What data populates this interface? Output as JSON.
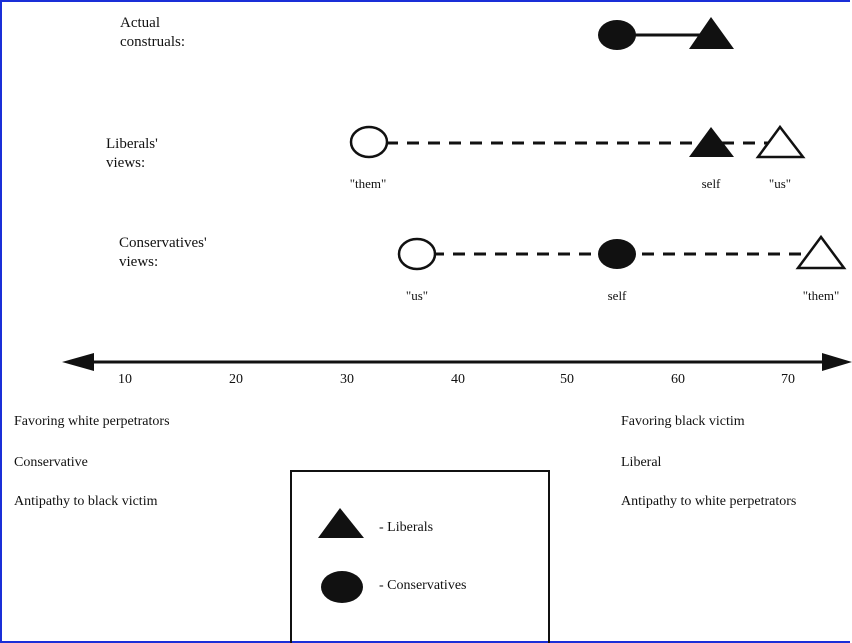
{
  "rows": [
    {
      "label": "Actual\nconstruals:"
    },
    {
      "label": "Liberals'\nviews:",
      "left_point": "\"them\"",
      "mid_point": "self",
      "right_point": "\"us\""
    },
    {
      "label": "Conservatives'\nviews:",
      "left_point": "\"us\"",
      "mid_point": "self",
      "right_point": "\"them\""
    }
  ],
  "axis": {
    "ticks": [
      "10",
      "20",
      "30",
      "40",
      "50",
      "60",
      "70"
    ]
  },
  "left_labels": [
    "Favoring white perpetrators",
    "Conservative",
    "Antipathy to black victim"
  ],
  "right_labels": [
    "Favoring black victim",
    "Liberal",
    "Antipathy to white perpetrators"
  ],
  "legend": {
    "liberals": "- Liberals",
    "conservatives": "- Conservatives"
  },
  "colors": {
    "border": "#1a2fd8",
    "ink": "#111111"
  }
}
